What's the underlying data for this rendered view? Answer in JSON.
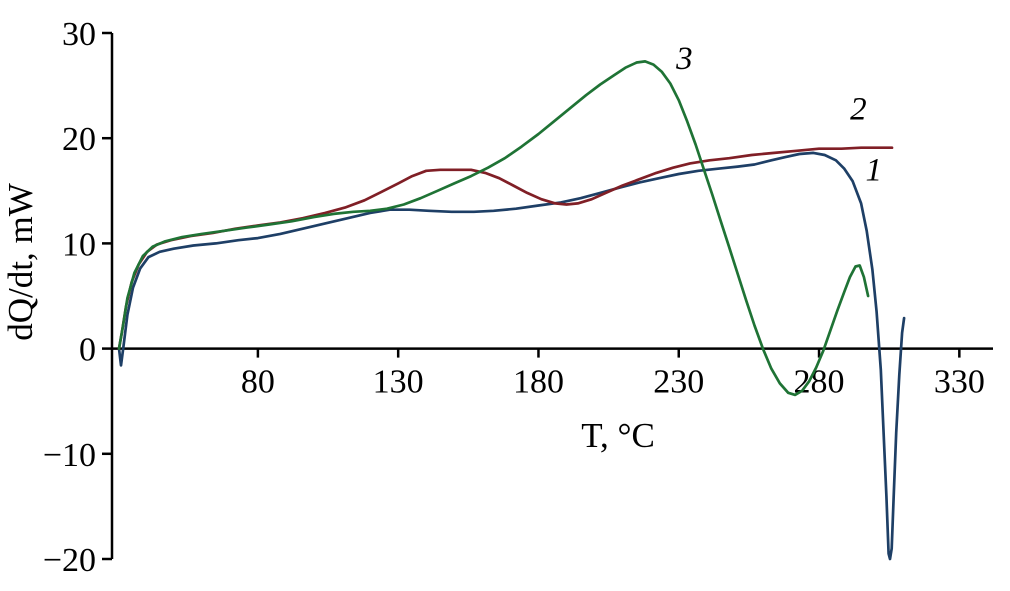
{
  "chart_data": {
    "type": "line",
    "xlabel": "T, °C",
    "ylabel": "dQ/dt, mW",
    "xlim": [
      28,
      342
    ],
    "ylim": [
      -20,
      30
    ],
    "xticks": [
      80,
      130,
      180,
      230,
      280,
      330
    ],
    "yticks": [
      -20,
      -10,
      0,
      10,
      20,
      30
    ],
    "grid": false,
    "legend": "inline-curve-labels",
    "series": [
      {
        "name": "1",
        "color": "#1e3f66",
        "label_pos": [
          299.5,
          16.0
        ],
        "points": [
          [
            30.5,
            0
          ],
          [
            31.2,
            -1.6
          ],
          [
            32,
            0
          ],
          [
            33.5,
            3.2
          ],
          [
            35.5,
            5.8
          ],
          [
            38,
            7.6
          ],
          [
            41,
            8.7
          ],
          [
            45,
            9.2
          ],
          [
            50,
            9.5
          ],
          [
            57,
            9.8
          ],
          [
            65,
            10.0
          ],
          [
            73,
            10.3
          ],
          [
            80,
            10.5
          ],
          [
            88,
            10.9
          ],
          [
            96,
            11.4
          ],
          [
            104,
            11.9
          ],
          [
            112,
            12.4
          ],
          [
            120,
            12.9
          ],
          [
            127,
            13.2
          ],
          [
            134,
            13.2
          ],
          [
            141,
            13.1
          ],
          [
            149,
            13.0
          ],
          [
            157,
            13.0
          ],
          [
            164,
            13.1
          ],
          [
            172,
            13.3
          ],
          [
            180,
            13.6
          ],
          [
            188,
            13.9
          ],
          [
            195,
            14.3
          ],
          [
            202,
            14.8
          ],
          [
            209,
            15.3
          ],
          [
            216,
            15.8
          ],
          [
            223,
            16.2
          ],
          [
            230,
            16.6
          ],
          [
            237,
            16.9
          ],
          [
            244,
            17.1
          ],
          [
            251,
            17.3
          ],
          [
            257,
            17.5
          ],
          [
            263,
            17.9
          ],
          [
            268,
            18.2
          ],
          [
            273,
            18.5
          ],
          [
            278,
            18.6
          ],
          [
            282,
            18.4
          ],
          [
            286,
            17.9
          ],
          [
            289,
            17.1
          ],
          [
            292,
            15.9
          ],
          [
            295,
            13.8
          ],
          [
            297,
            11.2
          ],
          [
            299,
            7.5
          ],
          [
            300.5,
            3.5
          ],
          [
            302,
            -2
          ],
          [
            303,
            -8
          ],
          [
            304,
            -14
          ],
          [
            304.8,
            -19.5
          ],
          [
            305.3,
            -20
          ],
          [
            305.9,
            -19
          ],
          [
            306.6,
            -14
          ],
          [
            307.5,
            -8
          ],
          [
            308.6,
            -2.5
          ],
          [
            309.6,
            1.5
          ],
          [
            310.3,
            2.9
          ]
        ]
      },
      {
        "name": "2",
        "color": "#801f26",
        "label_pos": [
          294,
          21.8
        ],
        "points": [
          [
            30.5,
            0
          ],
          [
            31.5,
            1.5
          ],
          [
            33,
            4
          ],
          [
            35,
            6.3
          ],
          [
            37.5,
            8
          ],
          [
            40.5,
            9.2
          ],
          [
            44,
            9.9
          ],
          [
            49,
            10.3
          ],
          [
            56,
            10.7
          ],
          [
            64,
            11.0
          ],
          [
            72,
            11.4
          ],
          [
            80,
            11.7
          ],
          [
            88,
            12.0
          ],
          [
            96,
            12.4
          ],
          [
            104,
            12.9
          ],
          [
            111,
            13.4
          ],
          [
            118,
            14.1
          ],
          [
            124,
            14.9
          ],
          [
            130,
            15.7
          ],
          [
            135,
            16.4
          ],
          [
            140,
            16.9
          ],
          [
            145,
            17.0
          ],
          [
            151,
            17.0
          ],
          [
            156,
            17.0
          ],
          [
            161,
            16.7
          ],
          [
            166,
            16.2
          ],
          [
            171,
            15.5
          ],
          [
            176,
            14.8
          ],
          [
            181,
            14.2
          ],
          [
            186,
            13.8
          ],
          [
            190,
            13.7
          ],
          [
            194,
            13.8
          ],
          [
            199,
            14.2
          ],
          [
            204,
            14.8
          ],
          [
            210,
            15.5
          ],
          [
            216,
            16.1
          ],
          [
            222,
            16.7
          ],
          [
            228,
            17.2
          ],
          [
            234,
            17.6
          ],
          [
            241,
            17.9
          ],
          [
            248,
            18.1
          ],
          [
            256,
            18.4
          ],
          [
            264,
            18.6
          ],
          [
            272,
            18.8
          ],
          [
            280,
            19.0
          ],
          [
            288,
            19.0
          ],
          [
            295,
            19.1
          ],
          [
            302,
            19.1
          ],
          [
            306,
            19.1
          ]
        ]
      },
      {
        "name": "3",
        "color": "#1f7335",
        "label_pos": [
          232,
          26.6
        ],
        "points": [
          [
            30.5,
            0
          ],
          [
            31.8,
            2
          ],
          [
            33.5,
            4.8
          ],
          [
            36,
            7.2
          ],
          [
            39,
            8.8
          ],
          [
            42.5,
            9.7
          ],
          [
            47,
            10.2
          ],
          [
            53,
            10.6
          ],
          [
            60,
            10.9
          ],
          [
            68,
            11.2
          ],
          [
            76,
            11.5
          ],
          [
            84,
            11.8
          ],
          [
            92,
            12.1
          ],
          [
            100,
            12.5
          ],
          [
            107,
            12.8
          ],
          [
            114,
            13.0
          ],
          [
            120,
            13.1
          ],
          [
            126,
            13.3
          ],
          [
            132,
            13.7
          ],
          [
            138,
            14.3
          ],
          [
            144,
            15.0
          ],
          [
            150,
            15.7
          ],
          [
            156,
            16.4
          ],
          [
            162,
            17.2
          ],
          [
            168,
            18.1
          ],
          [
            174,
            19.2
          ],
          [
            180,
            20.4
          ],
          [
            186,
            21.7
          ],
          [
            192,
            23.0
          ],
          [
            197,
            24.1
          ],
          [
            202,
            25.1
          ],
          [
            207,
            26.0
          ],
          [
            211,
            26.7
          ],
          [
            215,
            27.2
          ],
          [
            218,
            27.3
          ],
          [
            221,
            27.0
          ],
          [
            224,
            26.3
          ],
          [
            227,
            25.2
          ],
          [
            230,
            23.6
          ],
          [
            233,
            21.6
          ],
          [
            236,
            19.4
          ],
          [
            239,
            17.0
          ],
          [
            242,
            14.6
          ],
          [
            245,
            12.1
          ],
          [
            248,
            9.6
          ],
          [
            251,
            7.1
          ],
          [
            254,
            4.6
          ],
          [
            257,
            2.2
          ],
          [
            260,
            0.0
          ],
          [
            263,
            -1.9
          ],
          [
            266,
            -3.3
          ],
          [
            269,
            -4.2
          ],
          [
            271.5,
            -4.4
          ],
          [
            274,
            -4.0
          ],
          [
            276.5,
            -3.1
          ],
          [
            279,
            -1.8
          ],
          [
            281.5,
            -0.2
          ],
          [
            284,
            1.7
          ],
          [
            286.5,
            3.6
          ],
          [
            289,
            5.4
          ],
          [
            291,
            6.8
          ],
          [
            293,
            7.8
          ],
          [
            294.5,
            7.9
          ],
          [
            296,
            6.8
          ],
          [
            297.5,
            5.0
          ]
        ]
      }
    ]
  }
}
